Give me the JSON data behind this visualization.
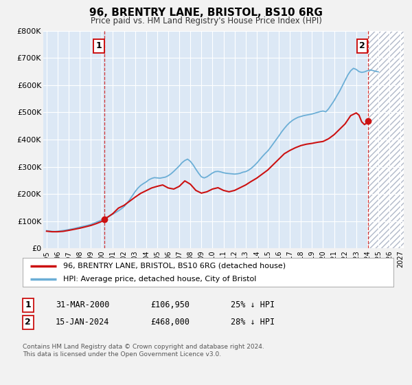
{
  "title": "96, BRENTRY LANE, BRISTOL, BS10 6RG",
  "subtitle": "Price paid vs. HM Land Registry's House Price Index (HPI)",
  "background_color": "#f2f2f2",
  "plot_bg_color": "#dce8f5",
  "hatch_color": "#c8d8e8",
  "grid_color": "#ffffff",
  "ylim": [
    0,
    800000
  ],
  "yticks": [
    0,
    100000,
    200000,
    300000,
    400000,
    500000,
    600000,
    700000,
    800000
  ],
  "ytick_labels": [
    "£0",
    "£100K",
    "£200K",
    "£300K",
    "£400K",
    "£500K",
    "£600K",
    "£700K",
    "£800K"
  ],
  "xlim_start": 1994.7,
  "xlim_end": 2027.3,
  "marker1_x": 2000.25,
  "marker1_y": 106950,
  "marker2_x": 2024.04,
  "marker2_y": 468000,
  "vline1_x": 2000.25,
  "vline2_x": 2024.04,
  "hpi_color": "#6baed6",
  "price_color": "#cc1111",
  "legend_label1": "96, BRENTRY LANE, BRISTOL, BS10 6RG (detached house)",
  "legend_label2": "HPI: Average price, detached house, City of Bristol",
  "table_row1": [
    "1",
    "31-MAR-2000",
    "£106,950",
    "25% ↓ HPI"
  ],
  "table_row2": [
    "2",
    "15-JAN-2024",
    "£468,000",
    "28% ↓ HPI"
  ],
  "footer": "Contains HM Land Registry data © Crown copyright and database right 2024.\nThis data is licensed under the Open Government Licence v3.0.",
  "hpi_data": [
    [
      1995.0,
      65000
    ],
    [
      1995.25,
      63500
    ],
    [
      1995.5,
      62500
    ],
    [
      1995.75,
      62000
    ],
    [
      1996.0,
      63000
    ],
    [
      1996.25,
      64000
    ],
    [
      1996.5,
      65500
    ],
    [
      1996.75,
      67000
    ],
    [
      1997.0,
      69000
    ],
    [
      1997.25,
      71000
    ],
    [
      1997.5,
      73000
    ],
    [
      1997.75,
      75500
    ],
    [
      1998.0,
      78000
    ],
    [
      1998.25,
      80500
    ],
    [
      1998.5,
      82500
    ],
    [
      1998.75,
      85000
    ],
    [
      1999.0,
      88000
    ],
    [
      1999.25,
      92000
    ],
    [
      1999.5,
      96000
    ],
    [
      1999.75,
      100000
    ],
    [
      2000.0,
      105000
    ],
    [
      2000.25,
      110000
    ],
    [
      2000.5,
      115000
    ],
    [
      2000.75,
      120000
    ],
    [
      2001.0,
      126000
    ],
    [
      2001.25,
      132000
    ],
    [
      2001.5,
      138000
    ],
    [
      2001.75,
      145000
    ],
    [
      2002.0,
      153000
    ],
    [
      2002.25,
      165000
    ],
    [
      2002.5,
      178000
    ],
    [
      2002.75,
      193000
    ],
    [
      2003.0,
      208000
    ],
    [
      2003.25,
      221000
    ],
    [
      2003.5,
      231000
    ],
    [
      2003.75,
      238000
    ],
    [
      2004.0,
      244000
    ],
    [
      2004.25,
      252000
    ],
    [
      2004.5,
      257000
    ],
    [
      2004.75,
      260000
    ],
    [
      2005.0,
      259000
    ],
    [
      2005.25,
      258000
    ],
    [
      2005.5,
      260000
    ],
    [
      2005.75,
      262000
    ],
    [
      2006.0,
      267000
    ],
    [
      2006.25,
      274000
    ],
    [
      2006.5,
      283000
    ],
    [
      2006.75,
      293000
    ],
    [
      2007.0,
      303000
    ],
    [
      2007.25,
      315000
    ],
    [
      2007.5,
      323000
    ],
    [
      2007.75,
      328000
    ],
    [
      2008.0,
      320000
    ],
    [
      2008.25,
      307000
    ],
    [
      2008.5,
      291000
    ],
    [
      2008.75,
      276000
    ],
    [
      2009.0,
      263000
    ],
    [
      2009.25,
      259000
    ],
    [
      2009.5,
      263000
    ],
    [
      2009.75,
      270000
    ],
    [
      2010.0,
      277000
    ],
    [
      2010.25,
      282000
    ],
    [
      2010.5,
      283000
    ],
    [
      2010.75,
      281000
    ],
    [
      2011.0,
      278000
    ],
    [
      2011.25,
      276000
    ],
    [
      2011.5,
      275000
    ],
    [
      2011.75,
      274000
    ],
    [
      2012.0,
      273000
    ],
    [
      2012.25,
      274000
    ],
    [
      2012.5,
      276000
    ],
    [
      2012.75,
      280000
    ],
    [
      2013.0,
      282000
    ],
    [
      2013.25,
      287000
    ],
    [
      2013.5,
      294000
    ],
    [
      2013.75,
      303000
    ],
    [
      2014.0,
      313000
    ],
    [
      2014.25,
      325000
    ],
    [
      2014.5,
      337000
    ],
    [
      2014.75,
      348000
    ],
    [
      2015.0,
      358000
    ],
    [
      2015.25,
      371000
    ],
    [
      2015.5,
      385000
    ],
    [
      2015.75,
      399000
    ],
    [
      2016.0,
      413000
    ],
    [
      2016.25,
      428000
    ],
    [
      2016.5,
      441000
    ],
    [
      2016.75,
      453000
    ],
    [
      2017.0,
      463000
    ],
    [
      2017.25,
      471000
    ],
    [
      2017.5,
      477000
    ],
    [
      2017.75,
      482000
    ],
    [
      2018.0,
      485000
    ],
    [
      2018.25,
      488000
    ],
    [
      2018.5,
      490000
    ],
    [
      2018.75,
      492000
    ],
    [
      2019.0,
      494000
    ],
    [
      2019.25,
      497000
    ],
    [
      2019.5,
      500000
    ],
    [
      2019.75,
      503000
    ],
    [
      2020.0,
      505000
    ],
    [
      2020.25,
      502000
    ],
    [
      2020.5,
      513000
    ],
    [
      2020.75,
      528000
    ],
    [
      2021.0,
      543000
    ],
    [
      2021.25,
      561000
    ],
    [
      2021.5,
      578000
    ],
    [
      2021.75,
      598000
    ],
    [
      2022.0,
      618000
    ],
    [
      2022.25,
      638000
    ],
    [
      2022.5,
      653000
    ],
    [
      2022.75,
      662000
    ],
    [
      2023.0,
      658000
    ],
    [
      2023.25,
      650000
    ],
    [
      2023.5,
      647000
    ],
    [
      2023.75,
      649000
    ],
    [
      2024.0,
      653000
    ],
    [
      2024.25,
      656000
    ],
    [
      2024.5,
      654000
    ],
    [
      2024.75,
      651000
    ],
    [
      2025.0,
      649000
    ]
  ],
  "price_data": [
    [
      1995.0,
      63000
    ],
    [
      1995.5,
      61000
    ],
    [
      1996.0,
      61000
    ],
    [
      1996.5,
      62500
    ],
    [
      1997.0,
      66000
    ],
    [
      1997.5,
      70000
    ],
    [
      1998.0,
      74000
    ],
    [
      1998.5,
      79000
    ],
    [
      1999.0,
      84000
    ],
    [
      1999.5,
      91000
    ],
    [
      2000.0,
      99000
    ],
    [
      2000.25,
      106950
    ],
    [
      2001.0,
      128000
    ],
    [
      2001.5,
      148000
    ],
    [
      2002.0,
      158000
    ],
    [
      2002.5,
      173000
    ],
    [
      2003.0,
      188000
    ],
    [
      2003.5,
      202000
    ],
    [
      2004.0,
      212000
    ],
    [
      2004.5,
      222000
    ],
    [
      2005.0,
      228000
    ],
    [
      2005.5,
      233000
    ],
    [
      2006.0,
      222000
    ],
    [
      2006.5,
      218000
    ],
    [
      2007.0,
      228000
    ],
    [
      2007.5,
      248000
    ],
    [
      2008.0,
      236000
    ],
    [
      2008.5,
      213000
    ],
    [
      2009.0,
      203000
    ],
    [
      2009.5,
      208000
    ],
    [
      2010.0,
      218000
    ],
    [
      2010.5,
      223000
    ],
    [
      2011.0,
      213000
    ],
    [
      2011.5,
      208000
    ],
    [
      2012.0,
      213000
    ],
    [
      2012.5,
      223000
    ],
    [
      2013.0,
      233000
    ],
    [
      2013.5,
      246000
    ],
    [
      2014.0,
      258000
    ],
    [
      2014.5,
      273000
    ],
    [
      2015.0,
      288000
    ],
    [
      2015.5,
      308000
    ],
    [
      2016.0,
      328000
    ],
    [
      2016.5,
      348000
    ],
    [
      2017.0,
      360000
    ],
    [
      2017.5,
      370000
    ],
    [
      2018.0,
      378000
    ],
    [
      2018.5,
      383000
    ],
    [
      2019.0,
      386000
    ],
    [
      2019.5,
      390000
    ],
    [
      2020.0,
      393000
    ],
    [
      2020.5,
      403000
    ],
    [
      2021.0,
      418000
    ],
    [
      2021.5,
      438000
    ],
    [
      2022.0,
      458000
    ],
    [
      2022.5,
      488000
    ],
    [
      2023.0,
      498000
    ],
    [
      2023.25,
      490000
    ],
    [
      2023.5,
      465000
    ],
    [
      2023.75,
      455000
    ],
    [
      2024.0,
      463000
    ],
    [
      2024.04,
      468000
    ]
  ]
}
